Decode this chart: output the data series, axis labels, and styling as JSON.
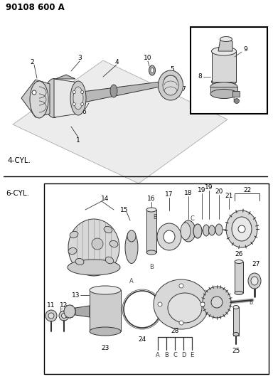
{
  "title": "90108 600 A",
  "bg_color": "#ffffff",
  "label_4cyl": "4-CYL.",
  "label_6cyl": "6-CYL.",
  "fig_width": 3.84,
  "fig_height": 5.33,
  "dpi": 100,
  "line_color": "#333333",
  "fill_light": "#e8e8e8",
  "fill_mid": "#cccccc",
  "fill_dark": "#aaaaaa"
}
